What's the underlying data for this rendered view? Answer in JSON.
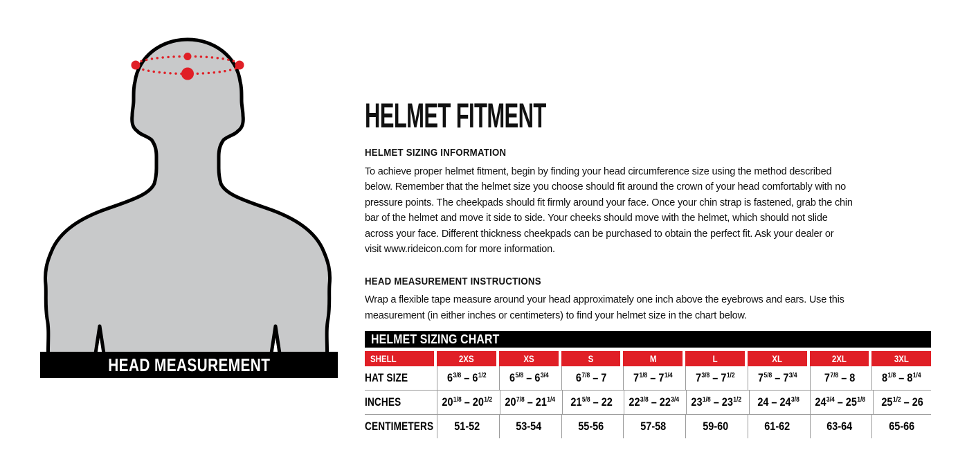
{
  "colors": {
    "accent_red": "#e01f26",
    "silhouette_gray": "#c8c9ca",
    "table_line_gray": "#9b9b9b",
    "bar_black": "#000000"
  },
  "figure": {
    "banner_label": "HEAD MEASUREMENT",
    "graphic": "head-and-torso-silhouette-with-dotted-measurement-tape"
  },
  "content": {
    "title": "HELMET FITMENT",
    "sections": [
      {
        "heading": "HELMET SIZING INFORMATION",
        "body": "To achieve proper helmet fitment, begin by finding your head circumference size using the method described below. Remember that the helmet size you choose should fit around the crown of your head comfortably with no pressure points. The cheekpads should fit firmly around your face. Once your chin strap is fastened, grab the chin bar of the helmet and move it side to side. Your cheeks should move with the helmet, which should not slide across your face. Different thickness cheekpads can be purchased to obtain the perfect fit. Ask your dealer or visit www.rideicon.com for more information."
      },
      {
        "heading": "HEAD MEASUREMENT INSTRUCTIONS",
        "body": "Wrap a flexible tape measure around your head approximately one inch above the eyebrows and ears. Use this measurement (in either inches or centimeters) to find your helmet size in the chart below."
      }
    ]
  },
  "sizing_chart": {
    "title": "HELMET SIZING CHART",
    "columns": [
      "SHELL",
      "2XS",
      "XS",
      "S",
      "M",
      "L",
      "XL",
      "2XL",
      "3XL"
    ],
    "rows": [
      {
        "label": "HAT SIZE",
        "values": [
          "6{3/8} – 6{1/2}",
          "6{5/8} – 6{3/4}",
          "6{7/8} – 7",
          "7{1/8} – 7{1/4}",
          "7{3/8} – 7{1/2}",
          "7{5/8} – 7{3/4}",
          "7{7/8} – 8",
          "8{1/8} – 8{1/4}"
        ]
      },
      {
        "label": "INCHES",
        "values": [
          "20{1/8} – 20{1/2}",
          "20{7/8} – 21{1/4}",
          "21{5/8} – 22",
          "22{3/8} – 22{3/4}",
          "23{1/8} – 23{1/2}",
          "24 – 24{3/8}",
          "24{3/4} – 25{1/8}",
          "25{1/2} – 26"
        ]
      },
      {
        "label": "CENTIMETERS",
        "values": [
          "51-52",
          "53-54",
          "55-56",
          "57-58",
          "59-60",
          "61-62",
          "63-64",
          "65-66"
        ]
      }
    ]
  }
}
